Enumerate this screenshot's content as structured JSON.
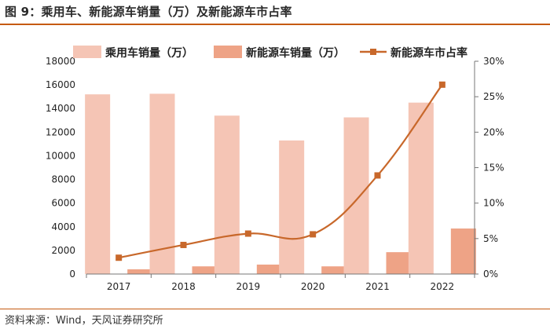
{
  "header": {
    "title": "图 9：乘用车、新能源车销量（万）及新能源车市占率"
  },
  "footer": {
    "source": "资料来源：Wind，天风证券研究所"
  },
  "colors": {
    "accent": "#c55a11",
    "bar_passenger": "#f5c5b5",
    "bar_nev": "#eea386",
    "line": "#c8682b"
  },
  "chart_data": {
    "type": "bar",
    "title": "乘用车、新能源车销量（万）及新能源车市占率",
    "categories": [
      "2017",
      "2018",
      "2019",
      "2020",
      "2021",
      "2022"
    ],
    "series": [
      {
        "name": "乘用车销量（万）",
        "type": "bar",
        "axis": "left",
        "values": [
          15200,
          15250,
          13400,
          11300,
          13250,
          14500
        ]
      },
      {
        "name": "新能源车销量（万）",
        "type": "bar",
        "axis": "left",
        "values": [
          400,
          650,
          800,
          650,
          1850,
          3850
        ]
      },
      {
        "name": "新能源车市占率",
        "type": "line",
        "axis": "right",
        "values": [
          2.3,
          4.1,
          5.7,
          5.6,
          13.9,
          26.7
        ]
      }
    ],
    "y_left": {
      "min": 0,
      "max": 18000,
      "ticks": [
        "0",
        "2000",
        "4000",
        "6000",
        "8000",
        "10000",
        "12000",
        "14000",
        "16000",
        "18000"
      ]
    },
    "y_right": {
      "min": 0,
      "max": 30,
      "ticks": [
        "0%",
        "5%",
        "10%",
        "15%",
        "20%",
        "25%",
        "30%"
      ]
    },
    "legend": "top",
    "grid": false
  }
}
